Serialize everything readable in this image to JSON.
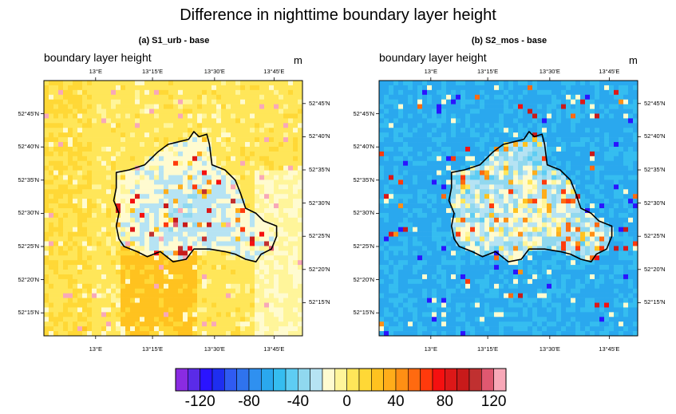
{
  "title": "Difference in nighttime boundary layer height",
  "colors": {
    "palette": [
      "#8a2be2",
      "#5a2be8",
      "#2a14ff",
      "#1e2ef0",
      "#2f5bf2",
      "#2f73ee",
      "#2f90f0",
      "#2aa8ee",
      "#35bdf0",
      "#5ecdf3",
      "#90d8ef",
      "#b6e3f3",
      "#fffbd0",
      "#fff59a",
      "#ffe659",
      "#ffd836",
      "#ffc21f",
      "#ffad1a",
      "#ff8f14",
      "#ff6a10",
      "#ff3a0c",
      "#f51010",
      "#dc1818",
      "#c81a1a",
      "#c03030",
      "#e05870",
      "#f8a8b8"
    ],
    "outline": "#000000"
  },
  "chart_data": [
    {
      "type": "heatmap",
      "panel_title": "(a) S1_urb - base",
      "field_label": "boundary layer height",
      "units": "m",
      "x_ticks": [
        "13°E",
        "13°15'E",
        "13°30'E",
        "13°45'E"
      ],
      "y_ticks_left": [
        "52°45'N",
        "52°40'N",
        "52°35'N",
        "52°30'N",
        "52°25'N",
        "52°20'N",
        "52°15'N"
      ],
      "y_ticks_right": [
        "52°45'N",
        "52°40'N",
        "52°35'N",
        "52°30'N",
        "52°25'N",
        "52°20'N",
        "52°15'N"
      ],
      "dominant_values": {
        "outside_city": 5,
        "inside_city": -15,
        "hotspots": 120
      },
      "contour": "Berlin city boundary"
    },
    {
      "type": "heatmap",
      "panel_title": "(b) S2_mos - base",
      "field_label": "boundary layer height",
      "units": "m",
      "x_ticks": [
        "13°E",
        "13°15'E",
        "13°30'E",
        "13°45'E"
      ],
      "y_ticks_left": [
        "52°45'N",
        "52°40'N",
        "52°35'N",
        "52°30'N",
        "52°25'N",
        "52°20'N",
        "52°15'N"
      ],
      "y_ticks_right": [
        "52°45'N",
        "52°40'N",
        "52°35'N",
        "52°30'N",
        "52°25'N",
        "52°20'N",
        "52°15'N"
      ],
      "dominant_values": {
        "outside_city": -60,
        "inside_city": -20,
        "hotspots": 60
      },
      "contour": "Berlin city boundary"
    }
  ],
  "colorbar": {
    "levels": [
      -130,
      -120,
      -110,
      -100,
      -90,
      -80,
      -70,
      -60,
      -50,
      -40,
      -30,
      -20,
      -10,
      0,
      10,
      20,
      30,
      40,
      50,
      60,
      70,
      80,
      90,
      100,
      110,
      120,
      130
    ],
    "labels": [
      "-120",
      "-80",
      "-40",
      "0",
      "40",
      "80",
      "120"
    ]
  }
}
